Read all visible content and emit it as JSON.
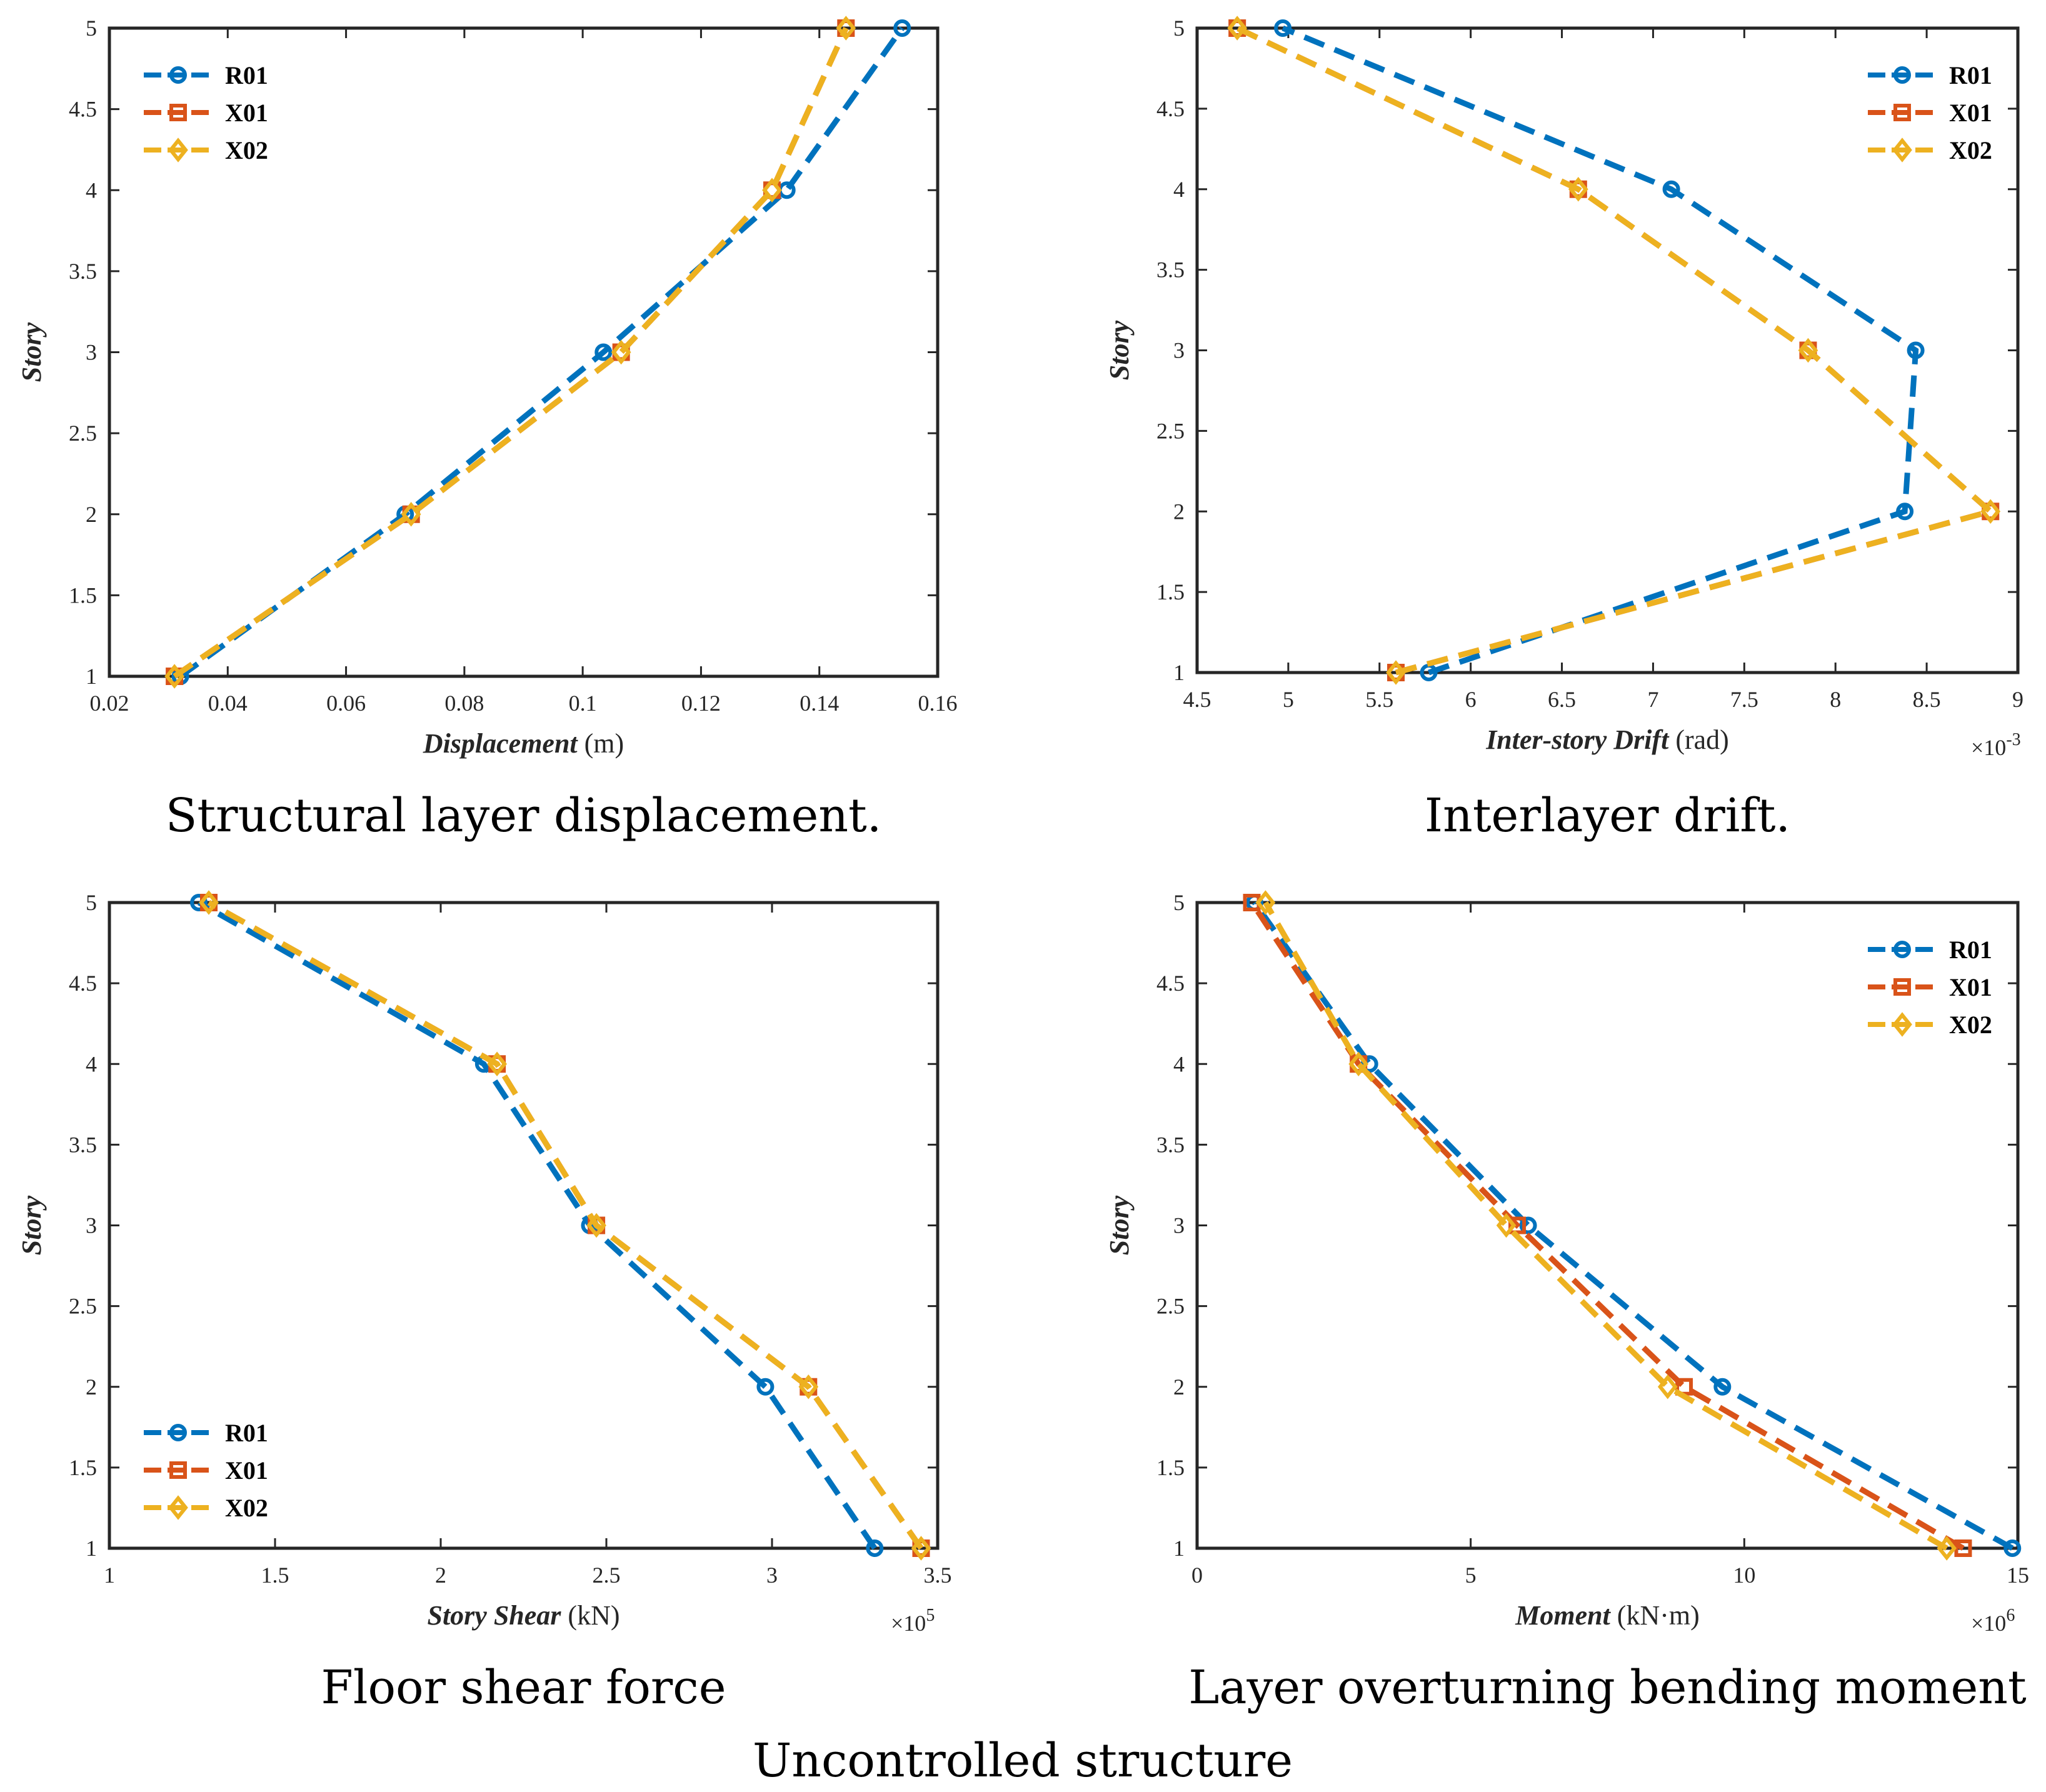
{
  "figure_caption": "Uncontrolled structure",
  "colors": {
    "R01": "#0072BD",
    "X01": "#D95319",
    "X02": "#EDB120",
    "axis": "#262626"
  },
  "chart_data": [
    {
      "type": "line",
      "caption": "Structural layer displacement.",
      "xlabel_main": "Displacement",
      "xlabel_unit": " (m)",
      "ylabel": "Story",
      "xlim": [
        0.02,
        0.16
      ],
      "ylim": [
        1,
        5
      ],
      "xticks": [
        0.02,
        0.04,
        0.06,
        0.08,
        0.1,
        0.12,
        0.14,
        0.16
      ],
      "xtick_labels": [
        "0.02",
        "0.04",
        "0.06",
        "0.08",
        "0.1",
        "0.12",
        "0.14",
        "0.16"
      ],
      "yticks": [
        1,
        1.5,
        2,
        2.5,
        3,
        3.5,
        4,
        4.5,
        5
      ],
      "ytick_labels": [
        "1",
        "1.5",
        "2",
        "2.5",
        "3",
        "3.5",
        "4",
        "4.5",
        "5"
      ],
      "multiplier": "",
      "legend_position": "top-left",
      "series": [
        {
          "name": "R01",
          "marker": "circle",
          "x": [
            0.032,
            0.07,
            0.1035,
            0.1345,
            0.154
          ],
          "y": [
            1,
            2,
            3,
            4,
            5
          ]
        },
        {
          "name": "X01",
          "marker": "square",
          "x": [
            0.031,
            0.071,
            0.1065,
            0.132,
            0.1445
          ],
          "y": [
            1,
            2,
            3,
            4,
            5
          ]
        },
        {
          "name": "X02",
          "marker": "diamond",
          "x": [
            0.031,
            0.071,
            0.1065,
            0.132,
            0.1445
          ],
          "y": [
            1,
            2,
            3,
            4,
            5
          ]
        }
      ]
    },
    {
      "type": "line",
      "caption": "Interlayer drift.",
      "xlabel_main": "Inter-story Drift",
      "xlabel_unit": " (rad)",
      "ylabel": "Story",
      "xlim": [
        4.5,
        9
      ],
      "ylim": [
        1,
        5
      ],
      "xticks": [
        4.5,
        5,
        5.5,
        6,
        6.5,
        7,
        7.5,
        8,
        8.5,
        9
      ],
      "xtick_labels": [
        "4.5",
        "5",
        "5.5",
        "6",
        "6.5",
        "7",
        "7.5",
        "8",
        "8.5",
        "9"
      ],
      "yticks": [
        1,
        1.5,
        2,
        2.5,
        3,
        3.5,
        4,
        4.5,
        5
      ],
      "ytick_labels": [
        "1",
        "1.5",
        "2",
        "2.5",
        "3",
        "3.5",
        "4",
        "4.5",
        "5"
      ],
      "multiplier": "×10",
      "multiplier_exp": "-3",
      "legend_position": "top-right",
      "series": [
        {
          "name": "R01",
          "marker": "circle",
          "x": [
            5.77,
            8.38,
            8.44,
            7.1,
            4.97
          ],
          "y": [
            1,
            2,
            3,
            4,
            5
          ]
        },
        {
          "name": "X01",
          "marker": "square",
          "x": [
            5.59,
            8.85,
            7.85,
            6.59,
            4.72
          ],
          "y": [
            1,
            2,
            3,
            4,
            5
          ]
        },
        {
          "name": "X02",
          "marker": "diamond",
          "x": [
            5.59,
            8.85,
            7.85,
            6.59,
            4.72
          ],
          "y": [
            1,
            2,
            3,
            4,
            5
          ]
        }
      ]
    },
    {
      "type": "line",
      "caption": "Floor shear force",
      "xlabel_main": "Story Shear",
      "xlabel_unit": " (kN)",
      "ylabel": "Story",
      "xlim": [
        1,
        3.5
      ],
      "ylim": [
        1,
        5
      ],
      "xticks": [
        1,
        1.5,
        2,
        2.5,
        3,
        3.5
      ],
      "xtick_labels": [
        "1",
        "1.5",
        "2",
        "2.5",
        "3",
        "3.5"
      ],
      "yticks": [
        1,
        1.5,
        2,
        2.5,
        3,
        3.5,
        4,
        4.5,
        5
      ],
      "ytick_labels": [
        "1",
        "1.5",
        "2",
        "2.5",
        "3",
        "3.5",
        "4",
        "4.5",
        "5"
      ],
      "multiplier": "×10",
      "multiplier_exp": "5",
      "legend_position": "bottom-left",
      "series": [
        {
          "name": "R01",
          "marker": "circle",
          "x": [
            3.31,
            2.98,
            2.45,
            2.13,
            1.27
          ],
          "y": [
            1,
            2,
            3,
            4,
            5
          ]
        },
        {
          "name": "X01",
          "marker": "square",
          "x": [
            3.45,
            3.11,
            2.47,
            2.17,
            1.3
          ],
          "y": [
            1,
            2,
            3,
            4,
            5
          ]
        },
        {
          "name": "X02",
          "marker": "diamond",
          "x": [
            3.45,
            3.11,
            2.47,
            2.17,
            1.3
          ],
          "y": [
            1,
            2,
            3,
            4,
            5
          ]
        }
      ]
    },
    {
      "type": "line",
      "caption": "Layer overturning bending moment",
      "xlabel_main": "Moment",
      "xlabel_unit": " (kN·m)",
      "ylabel": "Story",
      "xlim": [
        0,
        15
      ],
      "ylim": [
        1,
        5
      ],
      "xticks": [
        0,
        5,
        10,
        15
      ],
      "xtick_labels": [
        "0",
        "5",
        "10",
        "15"
      ],
      "yticks": [
        1,
        1.5,
        2,
        2.5,
        3,
        3.5,
        4,
        4.5,
        5
      ],
      "ytick_labels": [
        "1",
        "1.5",
        "2",
        "2.5",
        "3",
        "3.5",
        "4",
        "4.5",
        "5"
      ],
      "multiplier": "×10",
      "multiplier_exp": "6",
      "legend_position": "top-right",
      "series": [
        {
          "name": "R01",
          "marker": "circle",
          "x": [
            14.9,
            9.6,
            6.05,
            3.15,
            1.05
          ],
          "y": [
            1,
            2,
            3,
            4,
            5
          ]
        },
        {
          "name": "X01",
          "marker": "square",
          "x": [
            14.0,
            8.9,
            5.85,
            2.95,
            1.0
          ],
          "y": [
            1,
            2,
            3,
            4,
            5
          ]
        },
        {
          "name": "X02",
          "marker": "diamond",
          "x": [
            13.7,
            8.6,
            5.65,
            2.95,
            1.25
          ],
          "y": [
            1,
            2,
            3,
            4,
            5
          ]
        }
      ]
    }
  ]
}
